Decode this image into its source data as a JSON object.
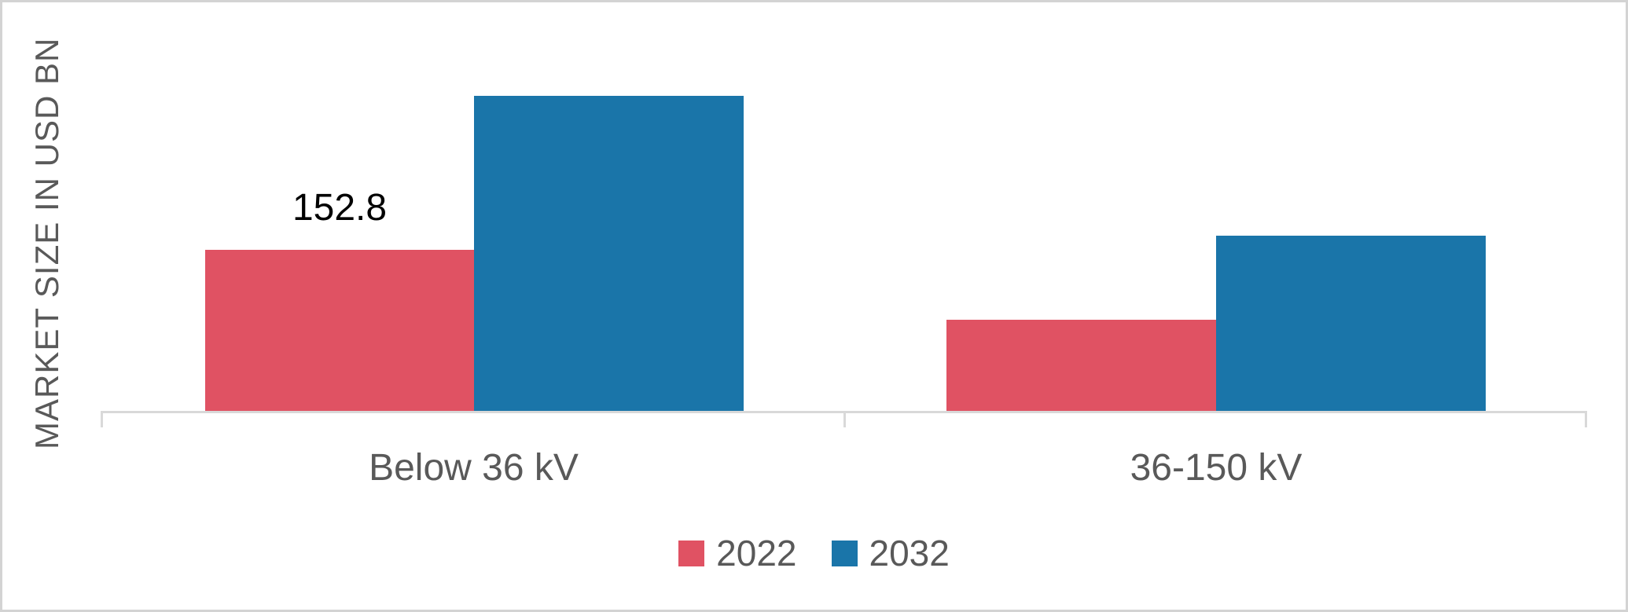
{
  "chart_data": {
    "type": "bar",
    "title": "",
    "ylabel": "MARKET SIZE IN USD BN",
    "xlabel": "",
    "categories": [
      "Below 36 kV",
      "36-150 kV"
    ],
    "series": [
      {
        "name": "2022",
        "color": "#E05263",
        "values": [
          152.8,
          86.5
        ]
      },
      {
        "name": "2032",
        "color": "#1A75A9",
        "values": [
          299,
          166
        ]
      }
    ],
    "data_label": "152.8",
    "ylim": [
      0,
      350
    ],
    "grid": false,
    "y_tick_labels_visible": false,
    "legend_position": "bottom",
    "axis_color": "#d9d9d9",
    "label_color": "#595959",
    "data_label_color": "#000000"
  }
}
